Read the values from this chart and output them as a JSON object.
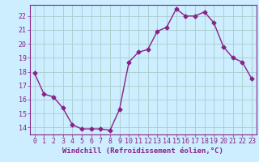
{
  "x": [
    0,
    1,
    2,
    3,
    4,
    5,
    6,
    7,
    8,
    9,
    10,
    11,
    12,
    13,
    14,
    15,
    16,
    17,
    18,
    19,
    20,
    21,
    22,
    23
  ],
  "y": [
    17.9,
    16.4,
    16.2,
    15.4,
    14.2,
    13.9,
    13.9,
    13.9,
    13.8,
    15.3,
    18.7,
    19.4,
    19.6,
    20.9,
    21.2,
    22.5,
    22.0,
    22.0,
    22.3,
    21.5,
    19.8,
    19.0,
    18.7,
    17.5
  ],
  "line_color": "#882288",
  "marker": "D",
  "markersize": 2.5,
  "linewidth": 1.0,
  "xlabel": "Windchill (Refroidissement éolien,°C)",
  "xlim": [
    -0.5,
    23.5
  ],
  "ylim": [
    13.5,
    22.8
  ],
  "yticks": [
    14,
    15,
    16,
    17,
    18,
    19,
    20,
    21,
    22
  ],
  "xticks": [
    0,
    1,
    2,
    3,
    4,
    5,
    6,
    7,
    8,
    9,
    10,
    11,
    12,
    13,
    14,
    15,
    16,
    17,
    18,
    19,
    20,
    21,
    22,
    23
  ],
  "bg_color": "#cceeff",
  "grid_color": "#aacccc",
  "line_border_color": "#882288",
  "tick_color": "#882288",
  "label_color": "#882288",
  "xlabel_fontsize": 6.5,
  "tick_fontsize": 6.0
}
